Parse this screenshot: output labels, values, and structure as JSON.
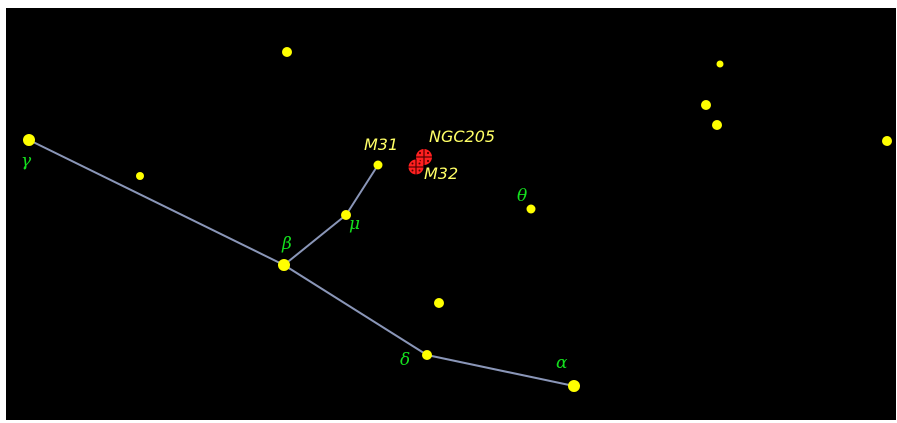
{
  "colors": {
    "sky": "#000000",
    "frame": "#ffffff",
    "star": "#ffff00",
    "constellation_line": "#8a96b8",
    "greek_label": "#14e01e",
    "dso_label": "#ffff66",
    "galaxy": "#ff2020",
    "galaxy_mark": "#550000"
  },
  "stars": {
    "alpha": "α",
    "beta": "β",
    "gamma": "γ",
    "delta": "δ",
    "mu": "μ",
    "theta": "θ"
  },
  "deep_sky": {
    "m31": "M31",
    "m32": "M32",
    "ngc205": "NGC205"
  }
}
